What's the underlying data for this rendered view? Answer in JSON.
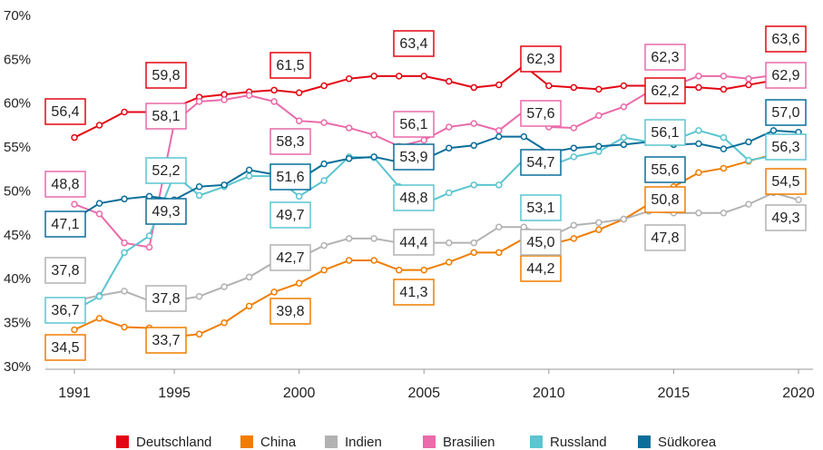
{
  "chart_data": {
    "type": "line",
    "x": [
      1991,
      1992,
      1993,
      1994,
      1995,
      1996,
      1997,
      1998,
      1999,
      2000,
      2001,
      2002,
      2003,
      2004,
      2005,
      2006,
      2007,
      2008,
      2009,
      2010,
      2011,
      2012,
      2013,
      2014,
      2015,
      2016,
      2017,
      2018,
      2019,
      2020
    ],
    "xlim": [
      1991,
      2020
    ],
    "xticks": [
      1991,
      1995,
      2000,
      2005,
      2010,
      2015,
      2020
    ],
    "ylim": [
      30,
      70
    ],
    "yticks": [
      {
        "value": 30,
        "label": "30%"
      },
      {
        "value": 35,
        "label": "35%"
      },
      {
        "value": 40,
        "label": "40%"
      },
      {
        "value": 45,
        "label": "45%"
      },
      {
        "value": 50,
        "label": "50%"
      },
      {
        "value": 55,
        "label": "55%"
      },
      {
        "value": 60,
        "label": "60%"
      },
      {
        "value": 65,
        "label": "65%"
      },
      {
        "value": 70,
        "label": "70%"
      }
    ],
    "grid": false,
    "legend": "bottom",
    "series": [
      {
        "name": "Deutschland",
        "color": "#e30613",
        "values": [
          56.4,
          57.8,
          59.3,
          59.3,
          59.8,
          61.0,
          61.3,
          61.6,
          61.8,
          61.5,
          62.3,
          63.1,
          63.4,
          63.4,
          63.4,
          62.8,
          62.1,
          62.4,
          64.6,
          62.3,
          62.1,
          61.9,
          62.3,
          62.3,
          62.2,
          62.1,
          61.9,
          62.4,
          62.9,
          63.6
        ],
        "value_labels": [
          "56,4",
          null,
          null,
          null,
          "59,8",
          null,
          null,
          null,
          null,
          "61,5",
          null,
          null,
          null,
          null,
          "63,4",
          null,
          null,
          null,
          null,
          "62,3",
          null,
          null,
          null,
          null,
          "62,2",
          null,
          null,
          null,
          null,
          "63,6"
        ]
      },
      {
        "name": "China",
        "color": "#f07d00",
        "values": [
          34.5,
          35.8,
          34.8,
          34.7,
          33.7,
          34.0,
          35.3,
          37.2,
          38.8,
          39.8,
          41.3,
          42.4,
          42.4,
          41.3,
          41.3,
          42.2,
          43.3,
          43.3,
          44.9,
          44.2,
          44.9,
          45.9,
          47.1,
          48.8,
          50.8,
          52.4,
          52.9,
          53.7,
          54.5,
          54.5
        ],
        "value_labels": [
          "34,5",
          null,
          null,
          null,
          "33,7",
          null,
          null,
          null,
          null,
          "39,8",
          null,
          null,
          null,
          null,
          "41,3",
          null,
          null,
          null,
          null,
          "44,2",
          null,
          null,
          null,
          null,
          "50,8",
          null,
          null,
          null,
          null,
          "54,5"
        ]
      },
      {
        "name": "Indien",
        "color": "#b2b2b2",
        "values": [
          37.8,
          38.4,
          38.9,
          37.8,
          37.8,
          38.3,
          39.4,
          40.5,
          42.2,
          42.7,
          44.1,
          44.9,
          44.9,
          44.4,
          44.4,
          44.4,
          44.4,
          46.2,
          46.2,
          45.0,
          46.4,
          46.7,
          47.1,
          48.0,
          47.8,
          47.8,
          47.8,
          48.8,
          50.1,
          49.3
        ],
        "value_labels": [
          "37,8",
          null,
          null,
          null,
          "37,8",
          null,
          null,
          null,
          null,
          "42,7",
          null,
          null,
          null,
          null,
          "44,4",
          null,
          null,
          null,
          null,
          "45,0",
          null,
          null,
          null,
          null,
          "47,8",
          null,
          null,
          null,
          null,
          "49,3"
        ]
      },
      {
        "name": "Brasilien",
        "color": "#ea6aaa",
        "values": [
          48.8,
          47.7,
          44.4,
          43.9,
          58.1,
          60.5,
          60.7,
          61.2,
          60.5,
          58.3,
          58.1,
          57.5,
          56.7,
          55.4,
          56.1,
          57.6,
          58.0,
          57.2,
          59.4,
          57.6,
          57.5,
          58.9,
          59.9,
          61.6,
          62.3,
          63.4,
          63.4,
          63.1,
          63.5,
          62.9
        ],
        "value_labels": [
          "48,8",
          null,
          null,
          null,
          "58,1",
          null,
          null,
          null,
          null,
          "58,3",
          null,
          null,
          null,
          null,
          "56,1",
          null,
          null,
          null,
          null,
          "57,6",
          null,
          null,
          null,
          null,
          "62,3",
          null,
          null,
          null,
          null,
          "62,9"
        ]
      },
      {
        "name": "Russland",
        "color": "#5bc5d0",
        "values": [
          36.7,
          38.3,
          43.3,
          45.2,
          52.2,
          49.8,
          50.8,
          52.0,
          52.0,
          49.7,
          51.5,
          54.2,
          54.1,
          50.8,
          48.8,
          50.1,
          51.0,
          51.0,
          53.9,
          53.1,
          54.2,
          54.8,
          56.4,
          55.9,
          56.1,
          57.2,
          56.4,
          53.8,
          54.3,
          56.3
        ],
        "value_labels": [
          "36,7",
          null,
          null,
          null,
          "52,2",
          null,
          null,
          null,
          null,
          "49,7",
          null,
          null,
          null,
          null,
          "48,8",
          null,
          null,
          null,
          null,
          "53,1",
          null,
          null,
          null,
          null,
          "56,1",
          null,
          null,
          null,
          null,
          "56,3"
        ]
      },
      {
        "name": "Südkorea",
        "color": "#0a6e9a",
        "values": [
          47.1,
          48.9,
          49.4,
          49.7,
          49.3,
          50.8,
          51.0,
          52.7,
          52.2,
          51.6,
          53.4,
          54.0,
          54.2,
          53.6,
          53.9,
          55.2,
          55.5,
          56.5,
          56.5,
          54.7,
          55.2,
          55.4,
          55.6,
          55.9,
          55.6,
          55.7,
          55.1,
          55.9,
          57.2,
          57.0
        ],
        "value_labels": [
          "47,1",
          null,
          null,
          null,
          "49,3",
          null,
          null,
          null,
          null,
          "51,6",
          null,
          null,
          null,
          null,
          "53,9",
          null,
          null,
          null,
          null,
          "54,7",
          null,
          null,
          null,
          null,
          "55,6",
          null,
          null,
          null,
          null,
          "57,0"
        ]
      }
    ]
  }
}
